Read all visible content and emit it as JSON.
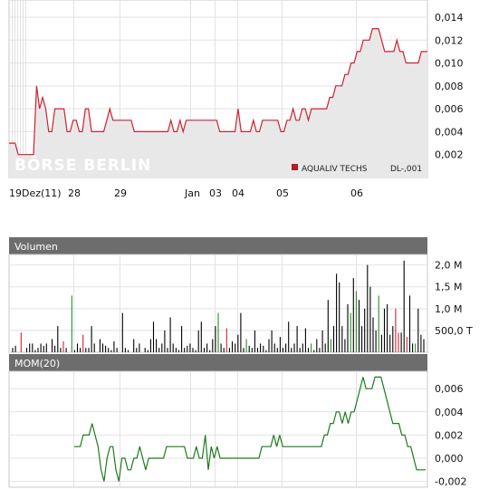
{
  "chart_data": [
    {
      "type": "line",
      "name": "price",
      "legend": "AQUALIV TECHS",
      "unit_label": "DL-,001",
      "watermark": "BÖRSE BERLIN",
      "x_labels": [
        "19Dez(11)",
        "28",
        "29",
        "Jan",
        "03",
        "04",
        "05",
        "06"
      ],
      "y_ticks": [
        "0,014",
        "0,012",
        "0,010",
        "0,008",
        "0,006",
        "0,004",
        "0,002"
      ],
      "ylim": [
        0,
        0.0155
      ],
      "series": [
        {
          "values": [
            0.003,
            0.003,
            0.003,
            0.002,
            0.002,
            0.002,
            0.002,
            0.002,
            0.002,
            0.008,
            0.006,
            0.007,
            0.006,
            0.004,
            0.004,
            0.006,
            0.006,
            0.006,
            0.006,
            0.004,
            0.004,
            0.005,
            0.005,
            0.004,
            0.004,
            0.006,
            0.006,
            0.004,
            0.004,
            0.004,
            0.004,
            0.004,
            0.005,
            0.006,
            0.005,
            0.005,
            0.005,
            0.005,
            0.005,
            0.005,
            0.005,
            0.004,
            0.004,
            0.004,
            0.004,
            0.004,
            0.004,
            0.004,
            0.004,
            0.004,
            0.004,
            0.004,
            0.004,
            0.005,
            0.004,
            0.004,
            0.005,
            0.004,
            0.005,
            0.005,
            0.005,
            0.005,
            0.005,
            0.005,
            0.005,
            0.005,
            0.005,
            0.005,
            0.005,
            0.004,
            0.004,
            0.004,
            0.004,
            0.004,
            0.004,
            0.006,
            0.004,
            0.004,
            0.004,
            0.004,
            0.005,
            0.004,
            0.004,
            0.005,
            0.005,
            0.005,
            0.005,
            0.005,
            0.005,
            0.004,
            0.004,
            0.005,
            0.005,
            0.006,
            0.005,
            0.005,
            0.006,
            0.006,
            0.005,
            0.006,
            0.006,
            0.006,
            0.006,
            0.006,
            0.006,
            0.007,
            0.007,
            0.008,
            0.008,
            0.008,
            0.009,
            0.009,
            0.01,
            0.01,
            0.011,
            0.011,
            0.012,
            0.012,
            0.012,
            0.013,
            0.013,
            0.013,
            0.012,
            0.011,
            0.011,
            0.011,
            0.011,
            0.012,
            0.011,
            0.011,
            0.01,
            0.01,
            0.01,
            0.01,
            0.01,
            0.011,
            0.011,
            0.011
          ]
        }
      ],
      "line_color": "#cc2233"
    },
    {
      "type": "bar",
      "name": "volume",
      "title": "Volumen",
      "y_ticks": [
        "2,0 M",
        "1,5 M",
        "1,0 M",
        "500,0 T"
      ],
      "ylim": [
        0,
        2.2
      ],
      "unit": "M",
      "values": [
        0.1,
        0.15,
        0,
        0.45,
        0,
        0.1,
        0.2,
        0.2,
        0.05,
        0.1,
        0.2,
        0.15,
        0.2,
        0,
        0.3,
        0.15,
        0.6,
        0.1,
        0.25,
        0.1,
        0,
        1.3,
        0.05,
        0.2,
        0.1,
        0.4,
        0.1,
        0.1,
        0.6,
        0.2,
        0,
        0.3,
        0.2,
        0.15,
        0.1,
        0.05,
        0.25,
        0.1,
        0,
        0.9,
        0.1,
        0.05,
        0,
        0.3,
        0.1,
        0.2,
        0,
        0.1,
        0.05,
        0.3,
        0.7,
        0.3,
        0.1,
        0.2,
        0.5,
        0.1,
        0.8,
        0.2,
        0.1,
        0.05,
        0.6,
        0.1,
        0.15,
        0.2,
        0.1,
        0.05,
        0.5,
        0.7,
        0.1,
        0.2,
        0.05,
        0.3,
        0.6,
        0.9,
        0.2,
        0.1,
        0.55,
        0.1,
        0.25,
        0.2,
        0.4,
        0.9,
        0.1,
        0.3,
        0.15,
        0.1,
        0.5,
        0.1,
        0.2,
        0.15,
        0.05,
        0.3,
        0.5,
        0.2,
        0.1,
        0.35,
        0.1,
        0.2,
        0.7,
        0.1,
        0.2,
        0.6,
        0.1,
        0.2,
        0.55,
        0.1,
        0.2,
        0.05,
        0.3,
        0.1,
        0.5,
        0.2,
        1.2,
        0.3,
        0.6,
        1.8,
        1.6,
        0.6,
        0.3,
        1.1,
        0.9,
        1.7,
        1.4,
        1.2,
        0.6,
        1.0,
        2.0,
        1.5,
        0.8,
        0.5,
        1.3,
        0.4,
        1.0,
        1.1,
        0.4,
        0.6,
        1.0,
        0.45,
        0.45,
        2.1,
        0.35,
        1.3,
        0.2,
        0.2,
        1.0,
        0.4,
        0.3
      ],
      "colors": [
        "#000000",
        "#000000",
        "#000000",
        "#cc2233",
        "#000000",
        "#000000",
        "#000000",
        "#000000",
        "#000000",
        "#000000",
        "#000000",
        "#000000",
        "#000000",
        "#000000",
        "#000000",
        "#000000",
        "#000000",
        "#000000",
        "#cc2233",
        "#000000",
        "#000000",
        "#2a8a2a",
        "#000000",
        "#000000",
        "#000000",
        "#cc2233",
        "#000000",
        "#000000",
        "#000000",
        "#000000",
        "#000000",
        "#000000",
        "#000000",
        "#000000",
        "#000000",
        "#000000",
        "#000000",
        "#000000",
        "#000000",
        "#000000",
        "#000000",
        "#000000",
        "#000000",
        "#000000",
        "#000000",
        "#000000",
        "#000000",
        "#000000",
        "#000000",
        "#000000",
        "#000000",
        "#000000",
        "#000000",
        "#000000",
        "#000000",
        "#000000",
        "#000000",
        "#000000",
        "#000000",
        "#000000",
        "#000000",
        "#000000",
        "#000000",
        "#000000",
        "#000000",
        "#000000",
        "#000000",
        "#000000",
        "#000000",
        "#000000",
        "#000000",
        "#000000",
        "#000000",
        "#2a8a2a",
        "#000000",
        "#000000",
        "#cc2233",
        "#000000",
        "#000000",
        "#000000",
        "#000000",
        "#000000",
        "#000000",
        "#2a8a2a",
        "#000000",
        "#000000",
        "#000000",
        "#000000",
        "#000000",
        "#000000",
        "#000000",
        "#000000",
        "#000000",
        "#000000",
        "#000000",
        "#000000",
        "#000000",
        "#000000",
        "#000000",
        "#000000",
        "#000000",
        "#000000",
        "#000000",
        "#000000",
        "#000000",
        "#000000",
        "#2a8a2a",
        "#000000",
        "#000000",
        "#000000",
        "#000000",
        "#000000",
        "#000000",
        "#2a8a2a",
        "#000000",
        "#000000",
        "#000000",
        "#000000",
        "#000000",
        "#000000",
        "#2a8a2a",
        "#000000",
        "#2a8a2a",
        "#000000",
        "#000000",
        "#000000",
        "#000000",
        "#000000",
        "#000000",
        "#000000",
        "#2a8a2a",
        "#000000",
        "#000000",
        "#000000",
        "#000000",
        "#000000",
        "#cc2233",
        "#cc2233",
        "#000000",
        "#000000",
        "#cc2233",
        "#000000",
        "#000000",
        "#2a8a2a",
        "#000000",
        "#000000"
      ]
    },
    {
      "type": "line",
      "name": "momentum",
      "title": "MOM(20)",
      "y_ticks": [
        "0,006",
        "0,004",
        "0,002",
        "0,000",
        "-0,002"
      ],
      "ylim": [
        -0.0025,
        0.0075
      ],
      "line_color": "#1e7a1e",
      "start_index": 20,
      "values": [
        0.001,
        0.001,
        0.001,
        0.002,
        0.002,
        0.002,
        0.003,
        0.002,
        0.001,
        -0.001,
        -0.002,
        0.0,
        0.001,
        0.001,
        -0.001,
        -0.002,
        0.0,
        0.0,
        -0.001,
        -0.001,
        0.0,
        0.0,
        0.001,
        0.0,
        -0.001,
        0.0,
        0.0,
        0.0,
        0.0,
        0.0,
        0.0,
        0.001,
        0.001,
        0.001,
        0.001,
        0.001,
        0.001,
        0.001,
        0.0,
        0.0,
        0.0,
        0.001,
        0.0,
        0.0,
        0.002,
        -0.001,
        0.001,
        0.0,
        0.001,
        0.0,
        0.0,
        0.0,
        0.0,
        0.0,
        0.0,
        0.0,
        0.0,
        0.0,
        0.0,
        0.0,
        0.0,
        0.0,
        0.0,
        0.001,
        0.001,
        0.001,
        0.001,
        0.002,
        0.001,
        0.002,
        0.001,
        0.001,
        0.001,
        0.001,
        0.001,
        0.001,
        0.001,
        0.001,
        0.001,
        0.001,
        0.001,
        0.001,
        0.001,
        0.001,
        0.002,
        0.002,
        0.003,
        0.003,
        0.004,
        0.004,
        0.003,
        0.004,
        0.003,
        0.004,
        0.004,
        0.005,
        0.006,
        0.007,
        0.006,
        0.006,
        0.006,
        0.007,
        0.007,
        0.007,
        0.006,
        0.005,
        0.004,
        0.003,
        0.003,
        0.003,
        0.002,
        0.002,
        0.001,
        0.001,
        0.0,
        -0.001,
        -0.001,
        -0.001,
        -0.001
      ]
    }
  ]
}
